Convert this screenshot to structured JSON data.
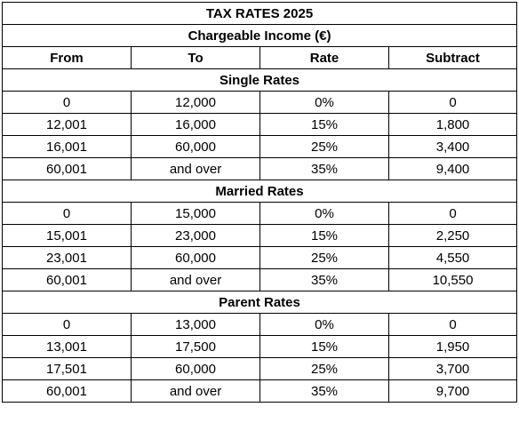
{
  "title": "TAX RATES 2025",
  "subtitle": "Chargeable Income (€)",
  "columns": [
    "From",
    "To",
    "Rate",
    "Subtract"
  ],
  "groups": [
    {
      "name": "Single Rates",
      "rows": [
        [
          "0",
          "12,000",
          "0%",
          "0"
        ],
        [
          "12,001",
          "16,000",
          "15%",
          "1,800"
        ],
        [
          "16,001",
          "60,000",
          "25%",
          "3,400"
        ],
        [
          "60,001",
          "and over",
          "35%",
          "9,400"
        ]
      ]
    },
    {
      "name": "Married Rates",
      "rows": [
        [
          "0",
          "15,000",
          "0%",
          "0"
        ],
        [
          "15,001",
          "23,000",
          "15%",
          "2,250"
        ],
        [
          "23,001",
          "60,000",
          "25%",
          "4,550"
        ],
        [
          "60,001",
          "and over",
          "35%",
          "10,550"
        ]
      ]
    },
    {
      "name": "Parent Rates",
      "rows": [
        [
          "0",
          "13,000",
          "0%",
          "0"
        ],
        [
          "13,001",
          "17,500",
          "15%",
          "1,950"
        ],
        [
          "17,501",
          "60,000",
          "25%",
          "3,700"
        ],
        [
          "60,001",
          "and over",
          "35%",
          "9,700"
        ]
      ]
    }
  ]
}
